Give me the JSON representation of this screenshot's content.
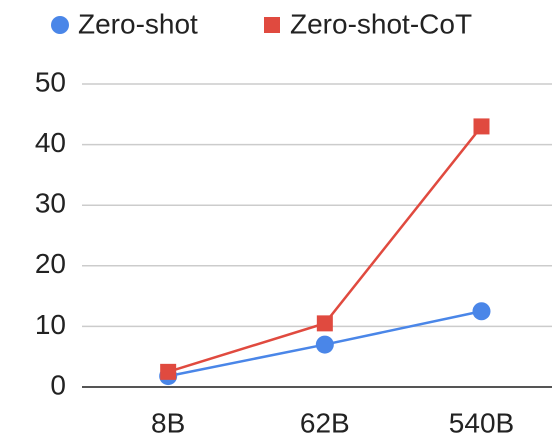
{
  "chart_data": {
    "type": "line",
    "categories": [
      "8B",
      "62B",
      "540B"
    ],
    "series": [
      {
        "name": "Zero-shot",
        "color": "#4a86e8",
        "marker": "circle",
        "values": [
          1.8,
          7,
          12.5
        ]
      },
      {
        "name": "Zero-shot-CoT",
        "color": "#e04a3f",
        "marker": "square",
        "values": [
          2.5,
          10.5,
          43
        ]
      }
    ],
    "ylim": [
      0,
      50
    ],
    "yticks": [
      0,
      10,
      20,
      30,
      40,
      50
    ],
    "grid": true,
    "legend": "top"
  }
}
